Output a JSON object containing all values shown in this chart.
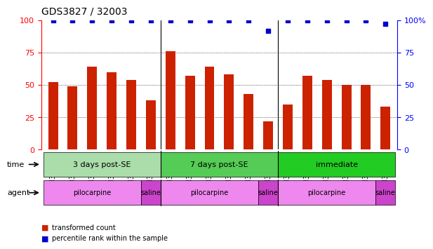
{
  "title": "GDS3827 / 32003",
  "samples": [
    "GSM367527",
    "GSM367528",
    "GSM367531",
    "GSM367532",
    "GSM367534",
    "GSM367718",
    "GSM367536",
    "GSM367538",
    "GSM367539",
    "GSM367540",
    "GSM367541",
    "GSM367719",
    "GSM367545",
    "GSM367546",
    "GSM367548",
    "GSM367549",
    "GSM367551",
    "GSM367721"
  ],
  "bar_values": [
    52,
    49,
    64,
    60,
    54,
    38,
    76,
    57,
    64,
    58,
    43,
    22,
    35,
    57,
    54,
    50,
    50,
    33
  ],
  "dot_values": [
    100,
    100,
    100,
    100,
    100,
    100,
    100,
    100,
    100,
    100,
    100,
    92,
    100,
    100,
    100,
    100,
    100,
    97
  ],
  "bar_color": "#CC2200",
  "dot_color": "#0000CC",
  "grid_values": [
    25,
    50,
    75
  ],
  "time_groups": [
    {
      "label": "3 days post-SE",
      "start": 0,
      "end": 6,
      "color": "#AADDAA"
    },
    {
      "label": "7 days post-SE",
      "start": 6,
      "end": 12,
      "color": "#55CC55"
    },
    {
      "label": "immediate",
      "start": 12,
      "end": 18,
      "color": "#22CC22"
    }
  ],
  "agent_groups": [
    {
      "label": "pilocarpine",
      "start": 0,
      "end": 5,
      "color": "#EE88EE"
    },
    {
      "label": "saline",
      "start": 5,
      "end": 6,
      "color": "#CC44CC"
    },
    {
      "label": "pilocarpine",
      "start": 6,
      "end": 11,
      "color": "#EE88EE"
    },
    {
      "label": "saline",
      "start": 11,
      "end": 12,
      "color": "#CC44CC"
    },
    {
      "label": "pilocarpine",
      "start": 12,
      "end": 17,
      "color": "#EE88EE"
    },
    {
      "label": "saline",
      "start": 17,
      "end": 18,
      "color": "#CC44CC"
    }
  ],
  "legend_items": [
    {
      "label": "transformed count",
      "color": "#CC2200"
    },
    {
      "label": "percentile rank within the sample",
      "color": "#0000CC"
    }
  ],
  "background_color": "#FFFFFF",
  "tick_label_fontsize": 7,
  "title_fontsize": 10
}
